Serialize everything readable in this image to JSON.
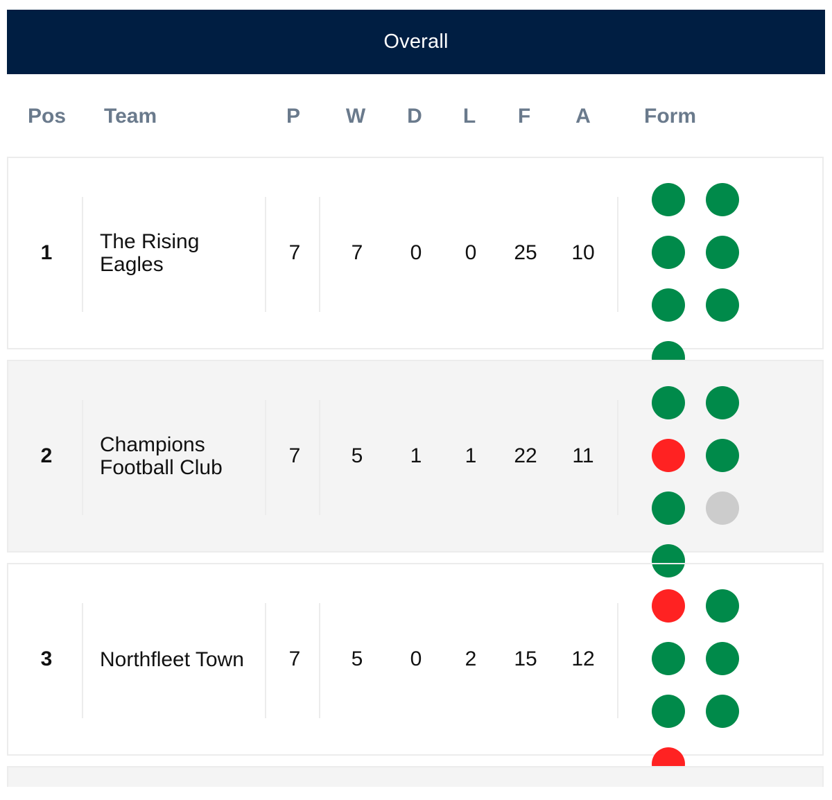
{
  "header": {
    "title": "Overall"
  },
  "columns": {
    "pos": "Pos",
    "team": "Team",
    "p": "P",
    "w": "W",
    "d": "D",
    "l": "L",
    "f": "F",
    "a": "A",
    "form": "Form"
  },
  "form_colors": {
    "win": "#008a4a",
    "loss": "#ff2222",
    "draw": "#cccccc"
  },
  "rows": [
    {
      "pos": "1",
      "team": "The Rising Eagles",
      "p": "7",
      "w": "7",
      "d": "0",
      "l": "0",
      "f": "25",
      "a": "10",
      "form": [
        "win",
        "win",
        "win",
        "win",
        "win",
        "win",
        "win"
      ]
    },
    {
      "pos": "2",
      "team": "Champions Football Club",
      "p": "7",
      "w": "5",
      "d": "1",
      "l": "1",
      "f": "22",
      "a": "11",
      "form": [
        "win",
        "win",
        "loss",
        "win",
        "win",
        "draw",
        "win"
      ]
    },
    {
      "pos": "3",
      "team": "Northfleet Town",
      "p": "7",
      "w": "5",
      "d": "0",
      "l": "2",
      "f": "15",
      "a": "12",
      "form": [
        "loss",
        "win",
        "win",
        "win",
        "win",
        "win",
        "loss"
      ]
    }
  ]
}
